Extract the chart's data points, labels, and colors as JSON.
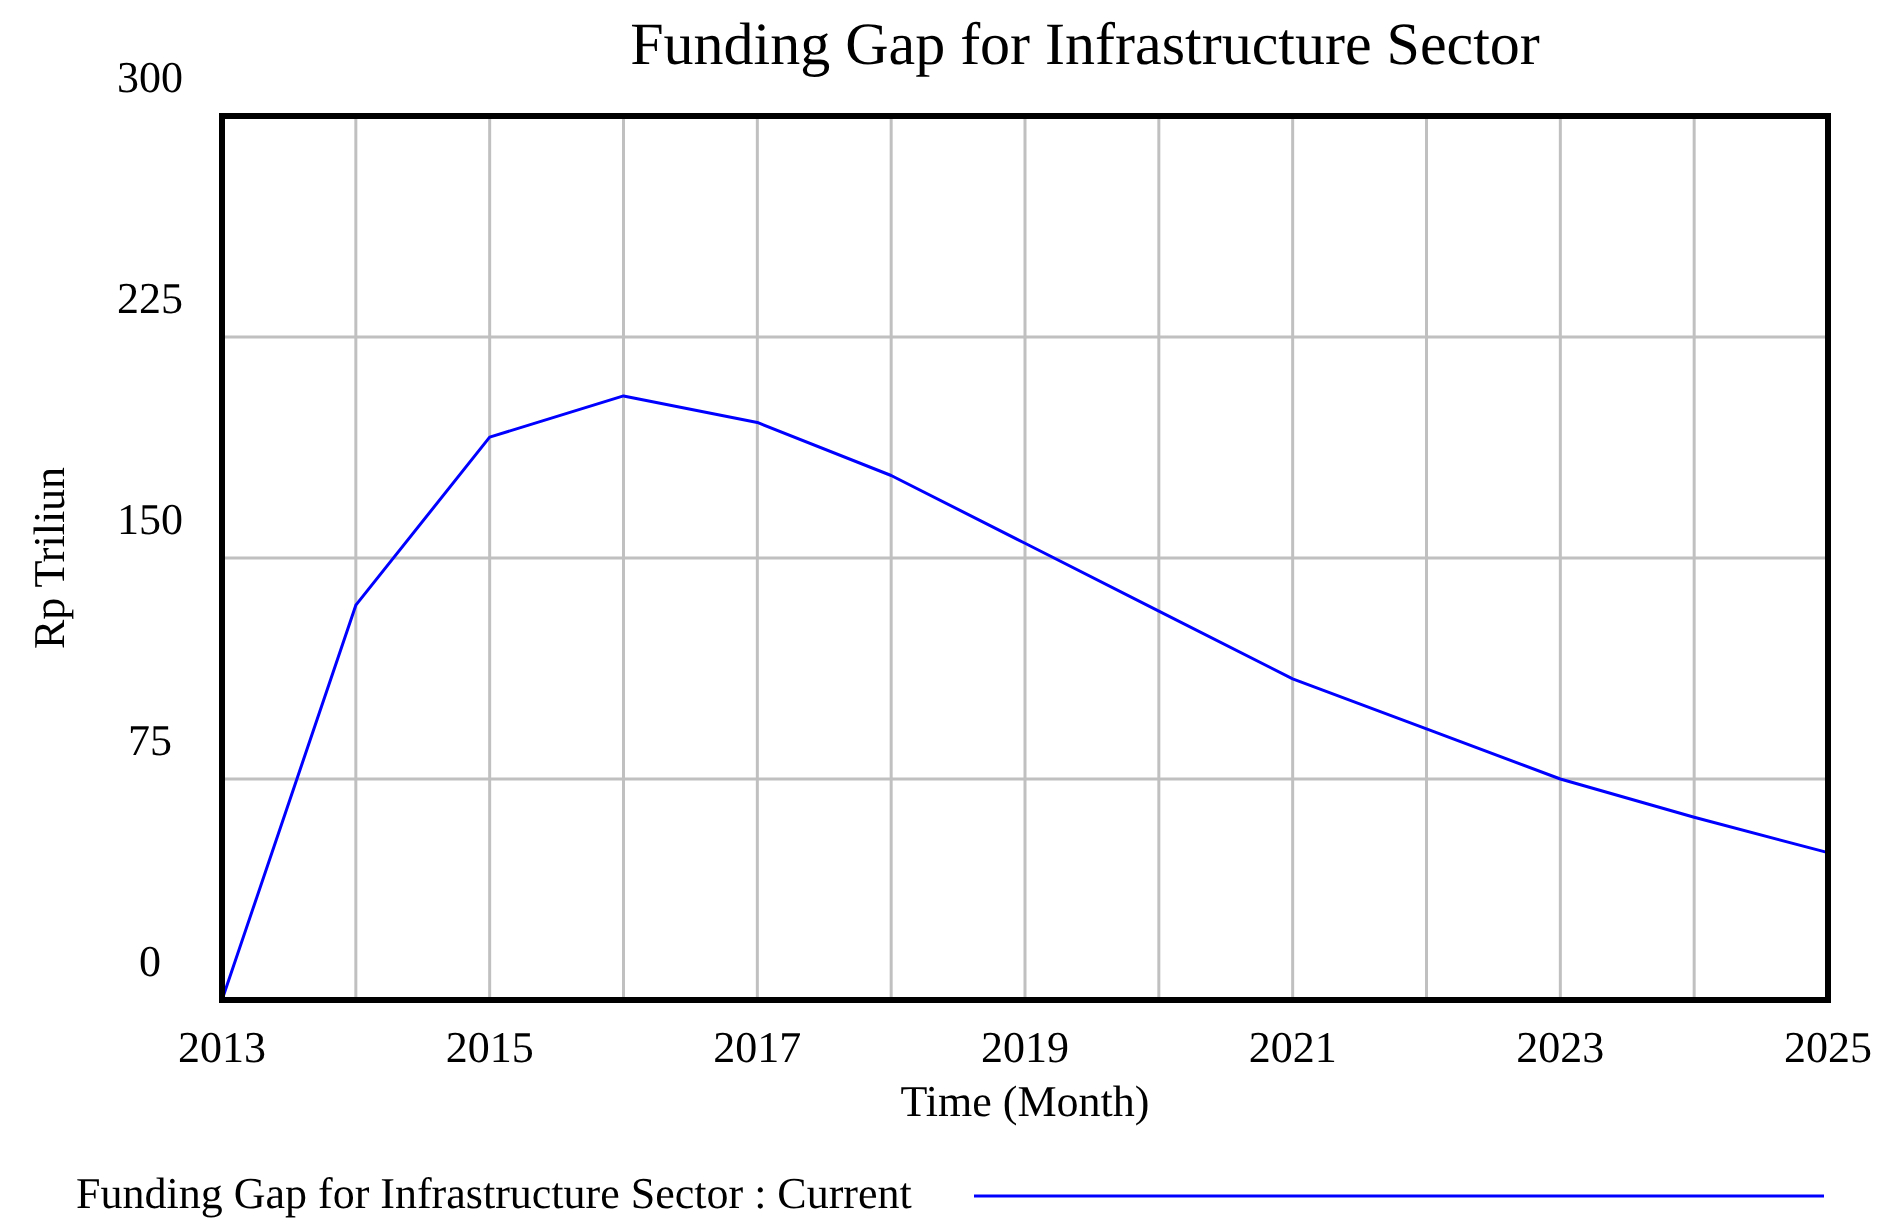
{
  "chart_data": {
    "type": "line",
    "title": "Funding Gap for Infrastructure Sector",
    "xlabel": "Time (Month)",
    "ylabel": "Rp Triliun",
    "x": [
      2013,
      2014,
      2015,
      2016,
      2017,
      2018,
      2019,
      2020,
      2021,
      2022,
      2023,
      2024,
      2025
    ],
    "series": [
      {
        "name": "Funding Gap for Infrastructure Sector : Current",
        "color": "#0000ff",
        "values": [
          0,
          134,
          191,
          205,
          196,
          178,
          155,
          132,
          109,
          92,
          75,
          62,
          50
        ]
      }
    ],
    "xlim": [
      2013,
      2025
    ],
    "xticks": [
      2013,
      {
        "value": 2014,
        "label": null
      },
      2015,
      {
        "value": 2016,
        "label": null
      },
      2017,
      {
        "value": 2018,
        "label": null
      },
      2019,
      {
        "value": 2020,
        "label": null
      },
      2021,
      {
        "value": 2022,
        "label": null
      },
      2023,
      {
        "value": 2024,
        "label": null
      },
      2025
    ],
    "ylim": [
      0,
      300
    ],
    "yticks": [
      0,
      75,
      150,
      225,
      300
    ],
    "grid": true,
    "legend": "bottom",
    "marker": "none",
    "line_style": "solid"
  }
}
